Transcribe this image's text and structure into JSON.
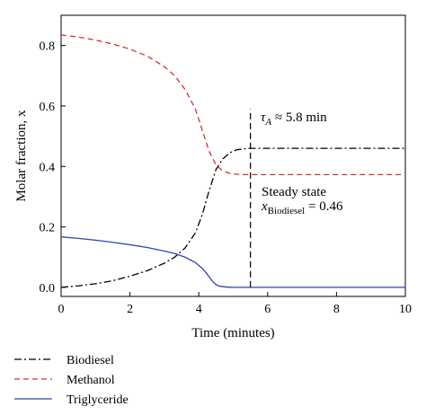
{
  "chart_data": {
    "type": "line",
    "xlabel": "Time (minutes)",
    "ylabel": "Molar fraction, x",
    "xlim": [
      0,
      10
    ],
    "ylim": [
      -0.03,
      0.9
    ],
    "x_ticks": [
      0,
      2,
      4,
      6,
      8,
      10
    ],
    "x_tick_labels": [
      "0",
      "2",
      "4",
      "6",
      "8",
      "10"
    ],
    "y_ticks": [
      0.0,
      0.2,
      0.4,
      0.6,
      0.8
    ],
    "y_tick_labels": [
      "0.0",
      "0.2",
      "0.4",
      "0.6",
      "0.8"
    ],
    "grid": false,
    "legend_position": "bottom-left, below plot",
    "series": [
      {
        "name": "Biodiesel",
        "color": "#000000",
        "style": "dash-dot",
        "x": [
          0,
          0.5,
          1.0,
          1.5,
          2.0,
          2.5,
          3.0,
          3.3,
          3.6,
          3.9,
          4.1,
          4.3,
          4.5,
          4.7,
          4.9,
          5.1,
          5.3,
          5.5,
          6.0,
          7.0,
          8.0,
          9.0,
          10.0
        ],
        "y": [
          0.0,
          0.005,
          0.012,
          0.022,
          0.037,
          0.055,
          0.08,
          0.1,
          0.13,
          0.18,
          0.24,
          0.32,
          0.39,
          0.425,
          0.445,
          0.455,
          0.458,
          0.46,
          0.46,
          0.46,
          0.46,
          0.46,
          0.46
        ]
      },
      {
        "name": "Methanol",
        "color": "#cc3333",
        "style": "dashed",
        "x": [
          0,
          0.5,
          1.0,
          1.5,
          2.0,
          2.5,
          3.0,
          3.3,
          3.6,
          3.9,
          4.1,
          4.3,
          4.5,
          4.7,
          4.9,
          5.1,
          5.3,
          5.5,
          6.0,
          7.0,
          8.0,
          9.0,
          10.0
        ],
        "y": [
          0.835,
          0.828,
          0.818,
          0.805,
          0.788,
          0.765,
          0.73,
          0.7,
          0.655,
          0.59,
          0.52,
          0.45,
          0.405,
          0.385,
          0.377,
          0.374,
          0.373,
          0.373,
          0.373,
          0.373,
          0.373,
          0.373,
          0.373
        ]
      },
      {
        "name": "Triglyceride",
        "color": "#3344aa",
        "style": "solid",
        "x": [
          0,
          0.5,
          1.0,
          1.5,
          2.0,
          2.5,
          3.0,
          3.3,
          3.6,
          3.9,
          4.1,
          4.2,
          4.3,
          4.4,
          4.5,
          4.6,
          4.8,
          5.0,
          5.5,
          6.0,
          7.0,
          8.0,
          9.0,
          10.0
        ],
        "y": [
          0.167,
          0.162,
          0.156,
          0.149,
          0.141,
          0.132,
          0.12,
          0.112,
          0.1,
          0.082,
          0.063,
          0.05,
          0.035,
          0.02,
          0.009,
          0.004,
          0.001,
          0.0,
          0.0,
          0.0,
          0.0,
          0.0,
          0.0,
          0.0
        ]
      }
    ],
    "vertical_line": {
      "x": 5.5,
      "y_from": 0.0,
      "y_to": 0.59,
      "color": "#000000",
      "style": "dashed"
    },
    "annotations": {
      "tau": "τ",
      "tau_sub": "A",
      "tau_rest": " ≈ 5.8 min",
      "steady_state": "Steady state",
      "x_var": "x",
      "x_sub": "Biodiesel",
      "x_rest": " = 0.46"
    }
  }
}
